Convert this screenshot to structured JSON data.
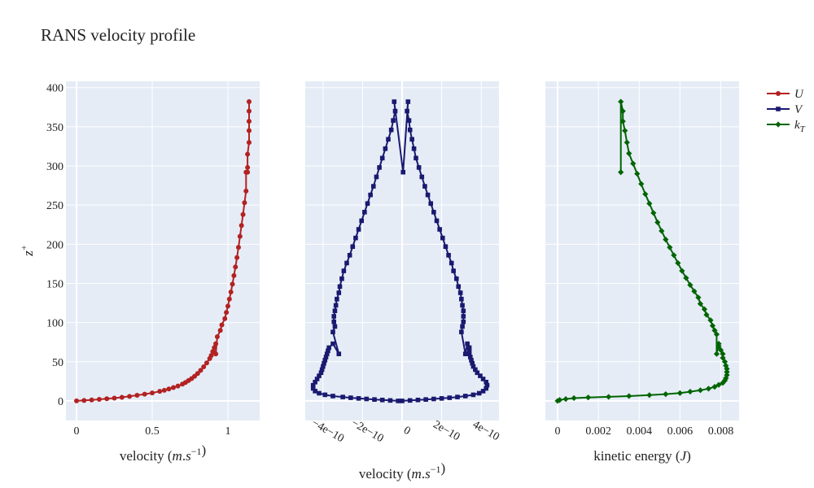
{
  "title": "RANS velocity profile",
  "colors": {
    "U": "#b22222",
    "V": "#191970",
    "kT": "#006400",
    "plot_bg": "#e5ecf6",
    "grid": "#ffffff"
  },
  "legend": {
    "placement": "top-right",
    "entries": [
      "U",
      "V",
      "k_T"
    ]
  },
  "chart_data": [
    {
      "type": "line",
      "name": "U",
      "xlabel": "velocity (m.s^-1)",
      "ylabel": "z^+",
      "xlim": [
        -0.07,
        1.21
      ],
      "ylim": [
        -25,
        408
      ],
      "xticks": [
        0,
        0.5,
        1
      ],
      "xtick_labels": [
        "0",
        "0.5",
        "1"
      ],
      "yticks": [
        0,
        50,
        100,
        150,
        200,
        250,
        300,
        350,
        400
      ],
      "ytick_labels": [
        "0",
        "50",
        "100",
        "150",
        "200",
        "250",
        "300",
        "350",
        "400"
      ],
      "marker": "circle",
      "points": [
        [
          0,
          0
        ],
        [
          0.05,
          0.6
        ],
        [
          0.1,
          1.2
        ],
        [
          0.15,
          2
        ],
        [
          0.2,
          2.8
        ],
        [
          0.25,
          3.6
        ],
        [
          0.3,
          4.6
        ],
        [
          0.35,
          5.8
        ],
        [
          0.4,
          7.2
        ],
        [
          0.45,
          8.6
        ],
        [
          0.5,
          10.2
        ],
        [
          0.55,
          12.2
        ],
        [
          0.58,
          13.6
        ],
        [
          0.61,
          15.2
        ],
        [
          0.64,
          17
        ],
        [
          0.67,
          19
        ],
        [
          0.7,
          21.5
        ],
        [
          0.72,
          23.5
        ],
        [
          0.74,
          26
        ],
        [
          0.76,
          28.5
        ],
        [
          0.78,
          31.5
        ],
        [
          0.8,
          35
        ],
        [
          0.82,
          39
        ],
        [
          0.84,
          43.5
        ],
        [
          0.86,
          48.5
        ],
        [
          0.88,
          54
        ],
        [
          0.89,
          58
        ],
        [
          0.9,
          63
        ],
        [
          0.91,
          68
        ],
        [
          0.92,
          73
        ],
        [
          0.92,
          60
        ],
        [
          0.93,
          82
        ],
        [
          0.95,
          90
        ],
        [
          0.96,
          97
        ],
        [
          0.98,
          105
        ],
        [
          0.99,
          113
        ],
        [
          1.0,
          121
        ],
        [
          1.01,
          130
        ],
        [
          1.02,
          139
        ],
        [
          1.03,
          149
        ],
        [
          1.04,
          160
        ],
        [
          1.05,
          171
        ],
        [
          1.06,
          183
        ],
        [
          1.07,
          196
        ],
        [
          1.08,
          210
        ],
        [
          1.09,
          224
        ],
        [
          1.1,
          238
        ],
        [
          1.11,
          253
        ],
        [
          1.12,
          268
        ],
        [
          1.12,
          292
        ],
        [
          1.13,
          292
        ],
        [
          1.13,
          298
        ],
        [
          1.13,
          315
        ],
        [
          1.14,
          330
        ],
        [
          1.14,
          345
        ],
        [
          1.14,
          357
        ],
        [
          1.14,
          370
        ],
        [
          1.14,
          382
        ]
      ]
    },
    {
      "type": "line",
      "name": "V",
      "xlabel": "velocity (m.s^-1)",
      "xlim": [
        -4.9e-10,
        4.9e-10
      ],
      "ylim": [
        -25,
        408
      ],
      "xticks": [
        -4e-10,
        -2e-10,
        0,
        2e-10,
        4e-10
      ],
      "xtick_labels": [
        "−4e−10",
        "−2e−10",
        "0",
        "2e−10",
        "4e−10"
      ],
      "marker": "square",
      "points": [
        [
          0,
          0
        ],
        [
          4e-11,
          0.6
        ],
        [
          8e-11,
          1.2
        ],
        [
          1.2e-10,
          1.8
        ],
        [
          1.6e-10,
          2.5
        ],
        [
          2e-10,
          3.2
        ],
        [
          2.4e-10,
          4
        ],
        [
          2.8e-10,
          5
        ],
        [
          3.2e-10,
          6.2
        ],
        [
          3.6e-10,
          7.8
        ],
        [
          3.9e-10,
          9.8
        ],
        [
          4.1e-10,
          12.5
        ],
        [
          4.25e-10,
          16
        ],
        [
          4.3e-10,
          20
        ],
        [
          4.25e-10,
          24
        ],
        [
          4.1e-10,
          28
        ],
        [
          3.95e-10,
          32
        ],
        [
          3.8e-10,
          36
        ],
        [
          3.7e-10,
          40
        ],
        [
          3.6e-10,
          44
        ],
        [
          3.55e-10,
          48
        ],
        [
          3.5e-10,
          52
        ],
        [
          3.45e-10,
          56
        ],
        [
          3.4e-10,
          60
        ],
        [
          3.4e-10,
          64
        ],
        [
          3.4e-10,
          68
        ],
        [
          3.3e-10,
          73
        ],
        [
          3.2e-10,
          60
        ],
        [
          3e-10,
          88
        ],
        [
          3.05e-10,
          95
        ],
        [
          3.1e-10,
          101
        ],
        [
          3.1e-10,
          108
        ],
        [
          3.1e-10,
          115
        ],
        [
          3.05e-10,
          122
        ],
        [
          3e-10,
          130
        ],
        [
          2.95e-10,
          138
        ],
        [
          2.85e-10,
          146
        ],
        [
          2.75e-10,
          156
        ],
        [
          2.6e-10,
          166
        ],
        [
          2.5e-10,
          176
        ],
        [
          2.35e-10,
          186
        ],
        [
          2.2e-10,
          197
        ],
        [
          2.05e-10,
          208
        ],
        [
          1.9e-10,
          219
        ],
        [
          1.75e-10,
          230
        ],
        [
          1.6e-10,
          241
        ],
        [
          1.45e-10,
          252
        ],
        [
          1.3e-10,
          263
        ],
        [
          1.15e-10,
          274
        ],
        [
          1e-10,
          286
        ],
        [
          8.5e-11,
          298
        ],
        [
          7e-11,
          310
        ],
        [
          6e-11,
          322
        ],
        [
          5e-11,
          334
        ],
        [
          4e-11,
          346
        ],
        [
          3.5e-11,
          358
        ],
        [
          2.5e-11,
          370
        ],
        [
          3e-11,
          382
        ],
        [
          5e-12,
          292
        ],
        [
          -4e-11,
          382
        ],
        [
          -3.5e-11,
          370
        ],
        [
          -4.5e-11,
          358
        ],
        [
          -5.5e-11,
          346
        ],
        [
          -7e-11,
          334
        ],
        [
          -8.5e-11,
          322
        ],
        [
          -1e-10,
          310
        ],
        [
          -1.15e-10,
          298
        ],
        [
          -1.3e-10,
          286
        ],
        [
          -1.45e-10,
          274
        ],
        [
          -1.6e-10,
          263
        ],
        [
          -1.75e-10,
          252
        ],
        [
          -1.9e-10,
          241
        ],
        [
          -2.05e-10,
          230
        ],
        [
          -2.2e-10,
          219
        ],
        [
          -2.35e-10,
          208
        ],
        [
          -2.5e-10,
          197
        ],
        [
          -2.65e-10,
          186
        ],
        [
          -2.8e-10,
          176
        ],
        [
          -2.95e-10,
          166
        ],
        [
          -3.05e-10,
          156
        ],
        [
          -3.15e-10,
          146
        ],
        [
          -3.2e-10,
          138
        ],
        [
          -3.3e-10,
          130
        ],
        [
          -3.35e-10,
          122
        ],
        [
          -3.4e-10,
          115
        ],
        [
          -3.45e-10,
          108
        ],
        [
          -3.45e-10,
          101
        ],
        [
          -3.4e-10,
          95
        ],
        [
          -3.5e-10,
          88
        ],
        [
          -3.2e-10,
          60
        ],
        [
          -3.5e-10,
          73
        ],
        [
          -3.7e-10,
          68
        ],
        [
          -3.75e-10,
          64
        ],
        [
          -3.8e-10,
          60
        ],
        [
          -3.85e-10,
          56
        ],
        [
          -3.9e-10,
          52
        ],
        [
          -3.95e-10,
          48
        ],
        [
          -4e-10,
          44
        ],
        [
          -4.05e-10,
          40
        ],
        [
          -4.1e-10,
          36
        ],
        [
          -4.2e-10,
          32
        ],
        [
          -4.3e-10,
          28
        ],
        [
          -4.4e-10,
          24
        ],
        [
          -4.5e-10,
          20
        ],
        [
          -4.5e-10,
          16
        ],
        [
          -4.4e-10,
          12.5
        ],
        [
          -4.2e-10,
          9.8
        ],
        [
          -3.9e-10,
          7.8
        ],
        [
          -3.5e-10,
          6.2
        ],
        [
          -3e-10,
          5
        ],
        [
          -2.6e-10,
          4
        ],
        [
          -2.2e-10,
          3.2
        ],
        [
          -1.8e-10,
          2.5
        ],
        [
          -1.4e-10,
          1.8
        ],
        [
          -1e-10,
          1.2
        ],
        [
          -6e-11,
          0.6
        ],
        [
          -2e-11,
          0
        ]
      ]
    },
    {
      "type": "line",
      "name": "k_T",
      "xlabel": "kinetic energy (J)",
      "xlim": [
        -0.0006,
        0.0089
      ],
      "ylim": [
        -25,
        408
      ],
      "xticks": [
        0,
        0.002,
        0.004,
        0.006,
        0.008
      ],
      "xtick_labels": [
        "0",
        "0.002",
        "0.004",
        "0.006",
        "0.008"
      ],
      "marker": "diamond",
      "points": [
        [
          0,
          0
        ],
        [
          0.0001,
          1.2
        ],
        [
          0.0004,
          2.4
        ],
        [
          0.0008,
          3.6
        ],
        [
          0.0015,
          4.4
        ],
        [
          0.0025,
          5.2
        ],
        [
          0.0035,
          6.2
        ],
        [
          0.0045,
          7.4
        ],
        [
          0.0053,
          8.6
        ],
        [
          0.006,
          10
        ],
        [
          0.0065,
          11.8
        ],
        [
          0.007,
          13.6
        ],
        [
          0.0074,
          15.6
        ],
        [
          0.0077,
          18
        ],
        [
          0.0079,
          20.5
        ],
        [
          0.0081,
          23
        ],
        [
          0.0082,
          26
        ],
        [
          0.00825,
          29
        ],
        [
          0.0083,
          33
        ],
        [
          0.0083,
          37
        ],
        [
          0.0083,
          41
        ],
        [
          0.00825,
          45
        ],
        [
          0.0082,
          50
        ],
        [
          0.0081,
          55
        ],
        [
          0.0081,
          60
        ],
        [
          0.008,
          65
        ],
        [
          0.0079,
          70
        ],
        [
          0.0079,
          73
        ],
        [
          0.0078,
          60
        ],
        [
          0.0078,
          85
        ],
        [
          0.0077,
          90
        ],
        [
          0.0076,
          96
        ],
        [
          0.0075,
          103
        ],
        [
          0.0073,
          110
        ],
        [
          0.0072,
          117
        ],
        [
          0.007,
          124
        ],
        [
          0.0069,
          132
        ],
        [
          0.0067,
          140
        ],
        [
          0.0065,
          148
        ],
        [
          0.0063,
          157
        ],
        [
          0.0061,
          166
        ],
        [
          0.0059,
          176
        ],
        [
          0.0057,
          186
        ],
        [
          0.0055,
          196
        ],
        [
          0.0053,
          206
        ],
        [
          0.0051,
          217
        ],
        [
          0.0049,
          228
        ],
        [
          0.0047,
          240
        ],
        [
          0.0045,
          252
        ],
        [
          0.0043,
          264
        ],
        [
          0.0041,
          277
        ],
        [
          0.0039,
          290
        ],
        [
          0.0037,
          303
        ],
        [
          0.0035,
          316
        ],
        [
          0.0034,
          330
        ],
        [
          0.0033,
          345
        ],
        [
          0.0032,
          357
        ],
        [
          0.0032,
          370
        ],
        [
          0.0031,
          382
        ],
        [
          0.0031,
          292
        ]
      ]
    }
  ]
}
